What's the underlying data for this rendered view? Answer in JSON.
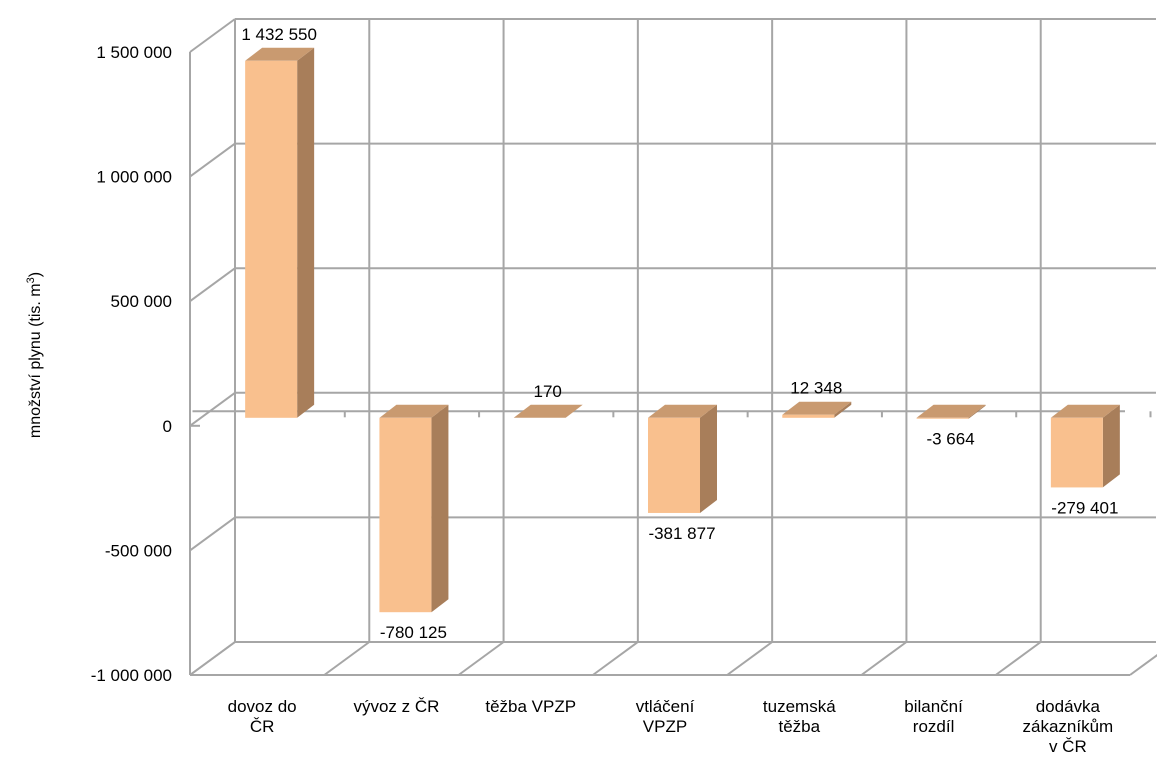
{
  "chart_data": {
    "type": "bar",
    "categories": [
      [
        "dovoz do",
        "ČR"
      ],
      [
        "vývoz z ČR"
      ],
      [
        "těžba VPZP"
      ],
      [
        "vtláčení",
        "VPZP"
      ],
      [
        "tuzemská",
        "těžba"
      ],
      [
        "bilanční",
        "rozdíl"
      ],
      [
        "dodávka",
        "zákazníkům",
        "v ČR"
      ]
    ],
    "values": [
      1432550,
      -780125,
      170,
      -381877,
      12348,
      -3664,
      -279401
    ],
    "data_labels": [
      "1 432 550",
      "-780 125",
      "170",
      "-381 877",
      "12 348",
      "-3 664",
      "-279 401"
    ],
    "ylabel_main": "množství plynu (tis. m",
    "ylabel_sup": "3",
    "ylabel_end": ")",
    "ylim": [
      -1000000,
      1500000
    ],
    "yticks": [
      1500000,
      1000000,
      500000,
      0,
      -500000,
      -1000000
    ],
    "ytick_labels": [
      "1 500 000",
      "1 000 000",
      "500 000",
      "0",
      "-500 000",
      "-1 000 000"
    ],
    "grid": true,
    "style": "3d-column",
    "colors": {
      "front": "#F9C08E",
      "side": "#A87E5A",
      "top": "#C99A70",
      "grid": "#A6A6A6"
    }
  }
}
